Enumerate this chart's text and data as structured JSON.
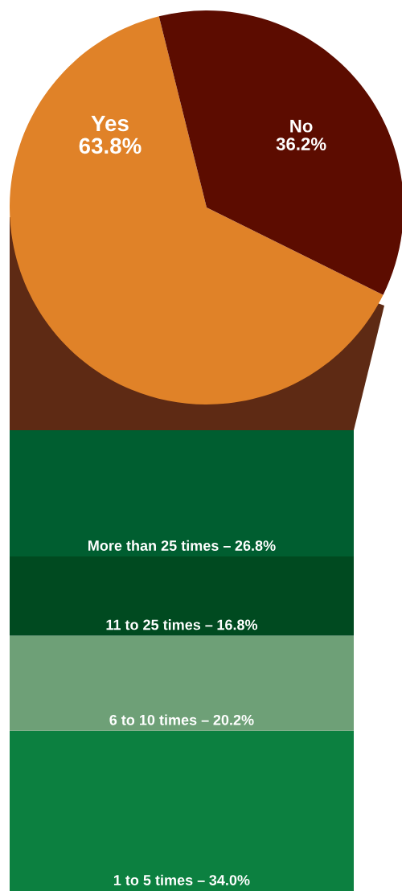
{
  "chart_data": [
    {
      "type": "pie",
      "categories": [
        "Yes",
        "No"
      ],
      "values": [
        63.8,
        36.2
      ],
      "colors": [
        "#e08228",
        "#5c0c00"
      ],
      "value_labels": [
        "63.8%",
        "36.2%"
      ]
    },
    {
      "type": "bar",
      "stacked": true,
      "categories": [
        null
      ],
      "series": [
        {
          "name": "1 to 5 times –",
          "color": "#0c8040",
          "values": [
            34.0
          ],
          "value_labels": [
            "34.0%"
          ]
        },
        {
          "name": "6 to 10 times –",
          "color": "#6ea077",
          "values": [
            20.2
          ],
          "value_labels": [
            "20.2%"
          ]
        },
        {
          "name": "11 to 25 times –",
          "color": "#004a20",
          "values": [
            16.8
          ],
          "value_labels": [
            "16.8%"
          ]
        },
        {
          "name": "More than 25 times –",
          "color": "#005e30",
          "values": [
            26.8
          ],
          "value_labels": [
            "26.8%"
          ]
        }
      ]
    }
  ]
}
